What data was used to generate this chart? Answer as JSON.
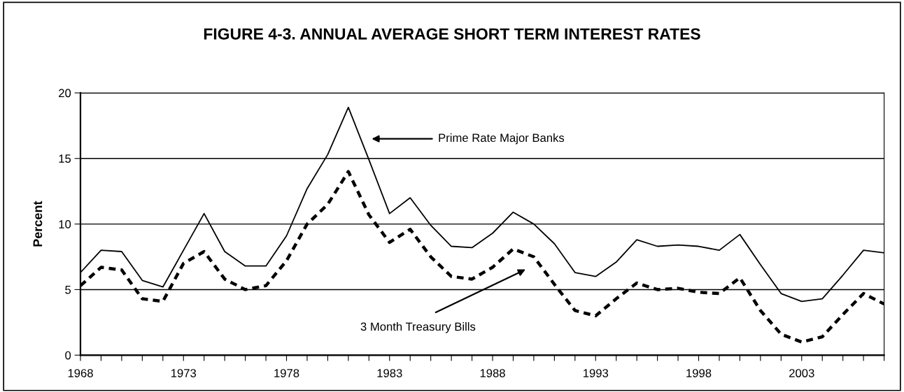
{
  "chart_data": {
    "type": "line",
    "title": "FIGURE 4-3. ANNUAL AVERAGE SHORT TERM INTEREST RATES",
    "ylabel": "Percent",
    "x": [
      1968,
      1969,
      1970,
      1971,
      1972,
      1973,
      1974,
      1975,
      1976,
      1977,
      1978,
      1979,
      1980,
      1981,
      1982,
      1983,
      1984,
      1985,
      1986,
      1987,
      1988,
      1989,
      1990,
      1991,
      1992,
      1993,
      1994,
      1995,
      1996,
      1997,
      1998,
      1999,
      2000,
      2001,
      2002,
      2003,
      2004,
      2005,
      2006,
      2007
    ],
    "series": [
      {
        "color": "#000000",
        "line_style": "solid",
        "values": [
          6.3,
          8.0,
          7.9,
          5.7,
          5.2,
          8.0,
          10.8,
          7.9,
          6.8,
          6.8,
          9.1,
          12.7,
          15.3,
          18.9,
          14.9,
          10.8,
          12.0,
          9.9,
          8.3,
          8.2,
          9.3,
          10.9,
          10.0,
          8.5,
          6.3,
          6.0,
          7.1,
          8.8,
          8.3,
          8.4,
          8.3,
          8.0,
          9.2,
          6.9,
          4.7,
          4.1,
          4.3,
          6.1,
          8.0,
          7.8
        ]
      },
      {
        "color": "#000000",
        "line_style": "dashed",
        "values": [
          5.3,
          6.7,
          6.5,
          4.3,
          4.1,
          7.0,
          7.9,
          5.8,
          5.0,
          5.3,
          7.2,
          10.0,
          11.5,
          14.0,
          10.7,
          8.6,
          9.6,
          7.5,
          6.0,
          5.8,
          6.7,
          8.1,
          7.5,
          5.4,
          3.4,
          3.0,
          4.3,
          5.5,
          5.0,
          5.1,
          4.8,
          4.7,
          5.9,
          3.4,
          1.6,
          1.0,
          1.4,
          3.1,
          4.7,
          3.9
        ]
      }
    ],
    "xlim": [
      1968,
      2007
    ],
    "xticks": [
      1968,
      {
        "value": 1969,
        "label": null
      },
      {
        "value": 1970,
        "label": null
      },
      {
        "value": 1971,
        "label": null
      },
      {
        "value": 1972,
        "label": null
      },
      1973,
      {
        "value": 1974,
        "label": null
      },
      {
        "value": 1975,
        "label": null
      },
      {
        "value": 1976,
        "label": null
      },
      {
        "value": 1977,
        "label": null
      },
      1978,
      {
        "value": 1979,
        "label": null
      },
      {
        "value": 1980,
        "label": null
      },
      {
        "value": 1981,
        "label": null
      },
      {
        "value": 1982,
        "label": null
      },
      1983,
      {
        "value": 1984,
        "label": null
      },
      {
        "value": 1985,
        "label": null
      },
      {
        "value": 1986,
        "label": null
      },
      {
        "value": 1987,
        "label": null
      },
      1988,
      {
        "value": 1989,
        "label": null
      },
      {
        "value": 1990,
        "label": null
      },
      {
        "value": 1991,
        "label": null
      },
      {
        "value": 1992,
        "label": null
      },
      1993,
      {
        "value": 1994,
        "label": null
      },
      {
        "value": 1995,
        "label": null
      },
      {
        "value": 1996,
        "label": null
      },
      {
        "value": 1997,
        "label": null
      },
      1998,
      {
        "value": 1999,
        "label": null
      },
      {
        "value": 2000,
        "label": null
      },
      {
        "value": 2001,
        "label": null
      },
      {
        "value": 2002,
        "label": null
      },
      2003,
      {
        "value": 2004,
        "label": null
      },
      {
        "value": 2005,
        "label": null
      },
      {
        "value": 2006,
        "label": null
      },
      {
        "value": 2007,
        "label": null
      }
    ],
    "ylim": [
      0,
      20
    ],
    "yticks": [
      0,
      5,
      10,
      15,
      20
    ],
    "grid": "y",
    "marker": "none",
    "annotations": [
      "Prime Rate Major Banks",
      "3 Month Treasury Bills"
    ]
  }
}
